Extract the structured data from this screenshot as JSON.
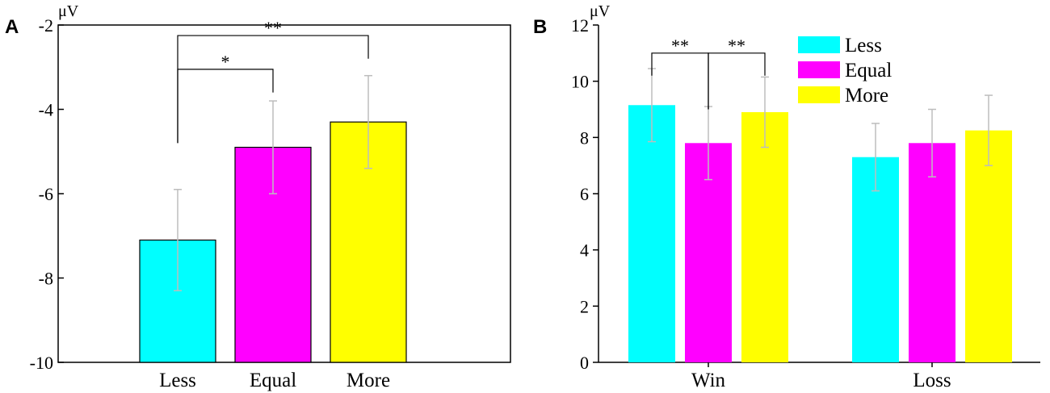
{
  "chart_data": [
    {
      "type": "bar",
      "panel_label": "A",
      "unit_label": "μV",
      "categories": [
        "Less",
        "Equal",
        "More"
      ],
      "values": [
        -7.1,
        -4.9,
        -4.3
      ],
      "errors": [
        1.2,
        1.1,
        1.1
      ],
      "colors": [
        "#00ffff",
        "#ff00ff",
        "#ffff00"
      ],
      "ylim": [
        -10,
        -2
      ],
      "yticks": [
        -10,
        -8,
        -6,
        -4,
        -2
      ],
      "ytick_labels": [
        "-10",
        "-8",
        "-6",
        "-4",
        "-2"
      ],
      "significance": [
        {
          "from": 0,
          "to": 2,
          "label": "**",
          "y": -2.25,
          "drop": 0.55
        },
        {
          "from": 0,
          "to": 1,
          "label": "*",
          "y": -3.05,
          "drop": 0.55
        }
      ]
    },
    {
      "type": "bar",
      "panel_label": "B",
      "unit_label": "μV",
      "categories": [
        "Win",
        "Loss"
      ],
      "series": [
        {
          "name": "Less",
          "color": "#00ffff",
          "values": [
            9.15,
            7.3
          ],
          "errors": [
            1.3,
            1.2
          ]
        },
        {
          "name": "Equal",
          "color": "#ff00ff",
          "values": [
            7.8,
            7.8
          ],
          "errors": [
            1.3,
            1.2
          ]
        },
        {
          "name": "More",
          "color": "#ffff00",
          "values": [
            8.9,
            8.25
          ],
          "errors": [
            1.25,
            1.25
          ]
        }
      ],
      "ylim": [
        0,
        12
      ],
      "yticks": [
        0,
        2,
        4,
        6,
        8,
        10,
        12
      ],
      "ytick_labels": [
        "0",
        "2",
        "4",
        "6",
        "8",
        "10",
        "12"
      ],
      "legend_position": "top-right",
      "significance": [
        {
          "group": 0,
          "from": 0,
          "to": 1,
          "label": "**",
          "y": 11.0,
          "drop": 0.8
        },
        {
          "group": 0,
          "from": 1,
          "to": 2,
          "label": "**",
          "y": 11.0,
          "drop": 0.8
        }
      ]
    }
  ]
}
